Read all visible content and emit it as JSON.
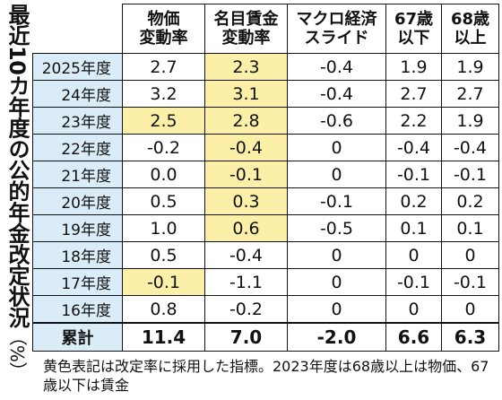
{
  "title": "最近10カ年度の公的年金改定状況",
  "unit": "（%）",
  "columns": {
    "price_rate": [
      "物価",
      "変動率"
    ],
    "nominal_wage_rate": [
      "名目賃金",
      "変動率"
    ],
    "macro_slide": [
      "マクロ経済",
      "スライド"
    ],
    "age_67_under": [
      "67歳",
      "以下"
    ],
    "age_68_over": [
      "68歳",
      "以上"
    ]
  },
  "rows": [
    {
      "year": "2025年度",
      "price": "2.7",
      "wage": "2.3",
      "macro": "-0.4",
      "a67": "1.9",
      "a68": "1.9",
      "highlight": [
        "wage"
      ]
    },
    {
      "year": "24年度",
      "price": "3.2",
      "wage": "3.1",
      "macro": "-0.4",
      "a67": "2.7",
      "a68": "2.7",
      "highlight": [
        "wage"
      ]
    },
    {
      "year": "23年度",
      "price": "2.5",
      "wage": "2.8",
      "macro": "-0.6",
      "a67": "2.2",
      "a68": "1.9",
      "highlight": [
        "price",
        "wage"
      ]
    },
    {
      "year": "22年度",
      "price": "-0.2",
      "wage": "-0.4",
      "macro": "0",
      "a67": "-0.4",
      "a68": "-0.4",
      "highlight": [
        "wage"
      ]
    },
    {
      "year": "21年度",
      "price": "0.0",
      "wage": "-0.1",
      "macro": "0",
      "a67": "-0.1",
      "a68": "-0.1",
      "highlight": [
        "wage"
      ]
    },
    {
      "year": "20年度",
      "price": "0.5",
      "wage": "0.3",
      "macro": "-0.1",
      "a67": "0.2",
      "a68": "0.2",
      "highlight": [
        "wage"
      ]
    },
    {
      "year": "19年度",
      "price": "1.0",
      "wage": "0.6",
      "macro": "-0.5",
      "a67": "0.1",
      "a68": "0.1",
      "highlight": [
        "wage"
      ]
    },
    {
      "year": "18年度",
      "price": "0.5",
      "wage": "-0.4",
      "macro": "0",
      "a67": "0",
      "a68": "0",
      "highlight": []
    },
    {
      "year": "17年度",
      "price": "-0.1",
      "wage": "-1.1",
      "macro": "0",
      "a67": "-0.1",
      "a68": "-0.1",
      "highlight": [
        "price"
      ]
    },
    {
      "year": "16年度",
      "price": "0.8",
      "wage": "-0.2",
      "macro": "0",
      "a67": "0",
      "a68": "0",
      "highlight": []
    }
  ],
  "total": {
    "label": "累計",
    "price": "11.4",
    "wage": "7.0",
    "macro": "-2.0",
    "a67": "6.6",
    "a68": "6.3"
  },
  "note": "黄色表記は改定率に採用した指標。2023年度は68歳以上は物価、67歳以下は賃金",
  "colors": {
    "highlight": "#fcf0a8",
    "year_column": "#d9ecf7",
    "border": "#111111"
  }
}
